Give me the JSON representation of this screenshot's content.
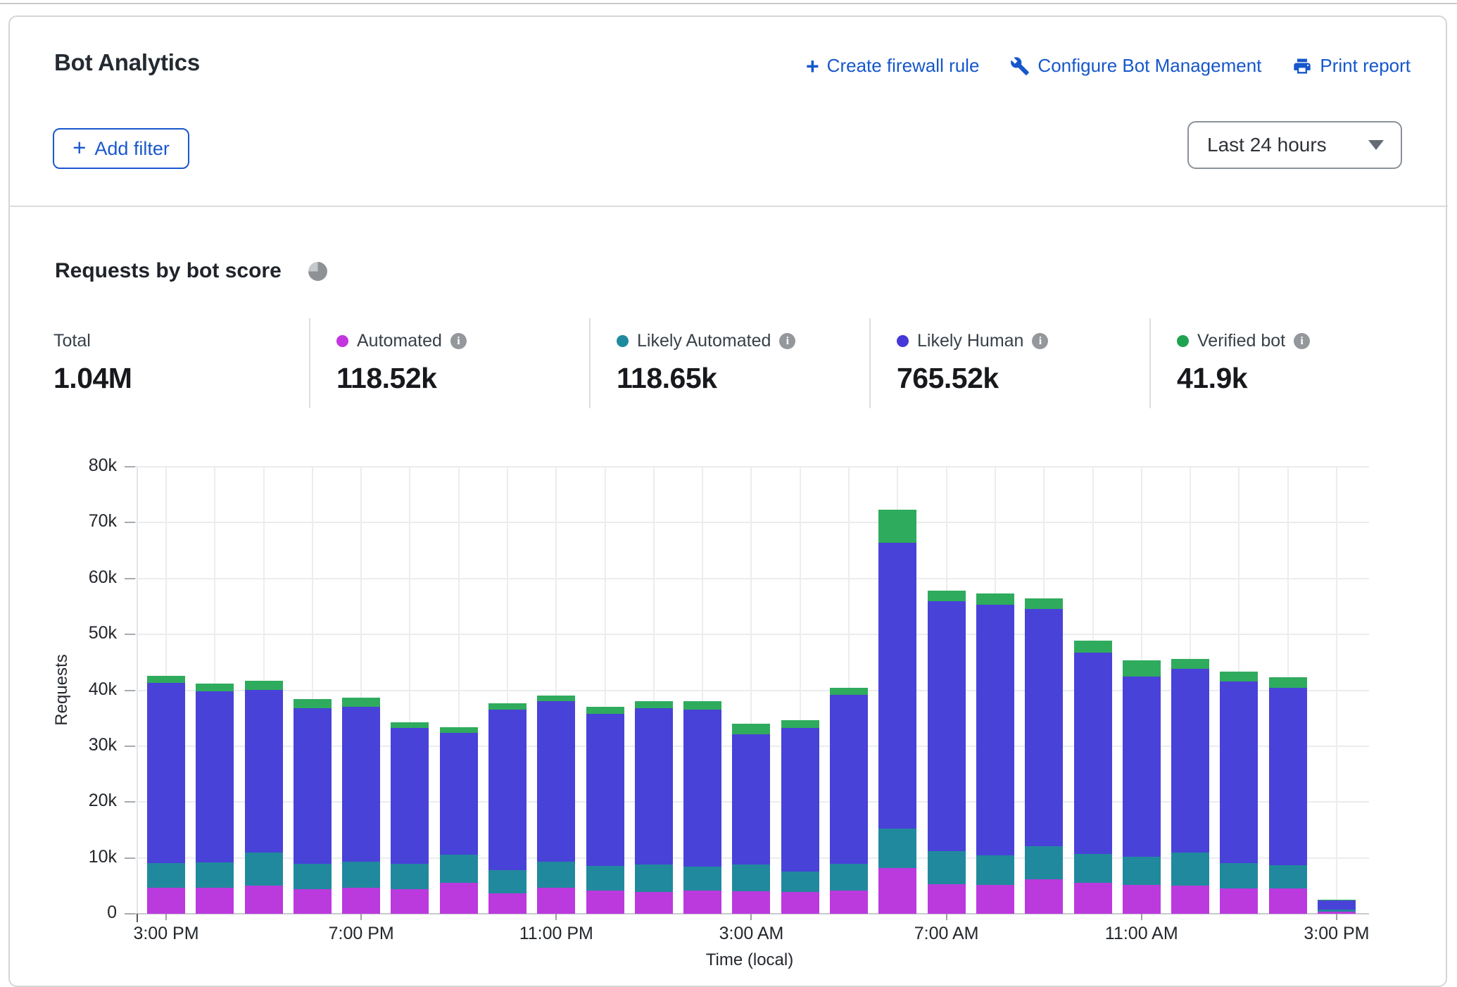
{
  "header": {
    "title": "Bot Analytics",
    "actions": [
      {
        "icon": "plus-icon",
        "glyph": "+",
        "label": "Create firewall rule"
      },
      {
        "icon": "wrench-icon",
        "label": "Configure Bot Management"
      },
      {
        "icon": "printer-icon",
        "label": "Print report"
      }
    ],
    "add_filter": {
      "glyph": "+",
      "label": "Add filter"
    },
    "time_range": "Last 24 hours"
  },
  "section": {
    "title": "Requests by bot score"
  },
  "stats": {
    "total": {
      "label": "Total",
      "value": "1.04M"
    },
    "categories": [
      {
        "label": "Automated",
        "value": "118.52k",
        "color": "#c335de"
      },
      {
        "label": "Likely Automated",
        "value": "118.65k",
        "color": "#1f8a9d"
      },
      {
        "label": "Likely Human",
        "value": "765.52k",
        "color": "#4637d9"
      },
      {
        "label": "Verified bot",
        "value": "41.9k",
        "color": "#1ea351"
      }
    ]
  },
  "chart_data": {
    "type": "bar",
    "stacked": true,
    "title": "Requests by bot score",
    "xlabel": "Time (local)",
    "ylabel": "Requests",
    "ylim": [
      0,
      80000
    ],
    "grid": true,
    "y_ticks": [
      "0",
      "10k",
      "20k",
      "30k",
      "40k",
      "50k",
      "60k",
      "70k",
      "80k"
    ],
    "x_ticks": [
      {
        "index": 0,
        "label": "3:00 PM"
      },
      {
        "index": 4,
        "label": "7:00 PM"
      },
      {
        "index": 8,
        "label": "11:00 PM"
      },
      {
        "index": 12,
        "label": "3:00 AM"
      },
      {
        "index": 16,
        "label": "7:00 AM"
      },
      {
        "index": 20,
        "label": "11:00 AM"
      },
      {
        "index": 24,
        "label": "3:00 PM"
      }
    ],
    "bar_count": 25,
    "series": [
      {
        "name": "Automated",
        "color": "#bb3ade",
        "values": [
          4700,
          4700,
          5000,
          4400,
          4700,
          4400,
          5500,
          3700,
          4700,
          4200,
          3900,
          4100,
          4000,
          3900,
          4100,
          8200,
          5300,
          5200,
          6200,
          5500,
          5200,
          5100,
          4600,
          4500,
          400
        ]
      },
      {
        "name": "Likely Automated",
        "color": "#21899d",
        "values": [
          4400,
          4500,
          5900,
          4500,
          4600,
          4500,
          5100,
          4100,
          4600,
          4400,
          4900,
          4400,
          4800,
          3600,
          4800,
          7000,
          5900,
          5300,
          5900,
          5200,
          5000,
          5900,
          4500,
          4200,
          300
        ]
      },
      {
        "name": "Likely Human",
        "color": "#4842d8",
        "values": [
          32200,
          30600,
          29200,
          27900,
          27800,
          24300,
          21800,
          28700,
          28700,
          27200,
          28000,
          28100,
          23300,
          25800,
          30300,
          51200,
          44700,
          44800,
          42500,
          36100,
          32200,
          32800,
          32500,
          31700,
          1800
        ]
      },
      {
        "name": "Verified bot",
        "color": "#2fab5d",
        "values": [
          1300,
          1400,
          1600,
          1600,
          1600,
          1100,
          1000,
          1200,
          1100,
          1300,
          1200,
          1400,
          1900,
          1300,
          1300,
          5900,
          1900,
          2000,
          1900,
          2100,
          3000,
          1800,
          1800,
          1900,
          50
        ]
      }
    ]
  }
}
